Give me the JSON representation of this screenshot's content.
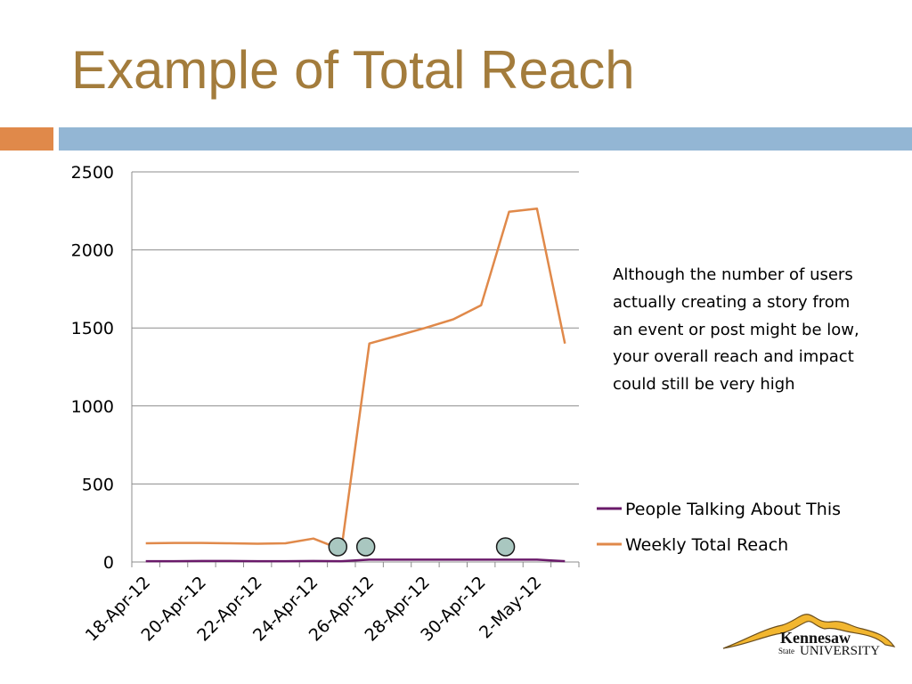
{
  "slide": {
    "title": "Example of Total Reach"
  },
  "annotation": "Although the number of users actually creating a story from an event or post might be low, your overall reach and impact could still be very high",
  "logo": {
    "line1": "Kennesaw",
    "line2": "State",
    "line3": "UNIVERSITY"
  },
  "colors": {
    "title": "#a37c3c",
    "accent_orange": "#e0894a",
    "accent_blue": "#93b6d4",
    "marker": "#a9c7c0"
  },
  "chart_data": {
    "type": "line",
    "x": [
      "18-Apr-12",
      "19-Apr-12",
      "20-Apr-12",
      "21-Apr-12",
      "22-Apr-12",
      "23-Apr-12",
      "24-Apr-12",
      "25-Apr-12",
      "26-Apr-12",
      "27-Apr-12",
      "28-Apr-12",
      "29-Apr-12",
      "30-Apr-12",
      "1-May-12",
      "2-May-12",
      "3-May-12"
    ],
    "tick_labels": [
      "18-Apr-12",
      "20-Apr-12",
      "22-Apr-12",
      "24-Apr-12",
      "26-Apr-12",
      "28-Apr-12",
      "30-Apr-12",
      "2-May-12"
    ],
    "ylim": [
      0,
      2500
    ],
    "yticks": [
      0,
      500,
      1000,
      1500,
      2000,
      2500
    ],
    "grid": true,
    "legend_position": "right",
    "series": [
      {
        "name": "People Talking About This",
        "color": "#6a1a6a",
        "values": [
          5,
          5,
          6,
          6,
          5,
          5,
          6,
          5,
          15,
          15,
          15,
          15,
          15,
          15,
          15,
          5
        ]
      },
      {
        "name": "Weekly Total Reach",
        "color": "#e0894a",
        "values": [
          120,
          122,
          122,
          120,
          117,
          120,
          150,
          80,
          1400,
          1450,
          1500,
          1555,
          1645,
          2245,
          2265,
          1400
        ]
      }
    ],
    "highlight_dates": [
      "25-Apr-12",
      "26-Apr-12",
      "1-May-12"
    ]
  }
}
